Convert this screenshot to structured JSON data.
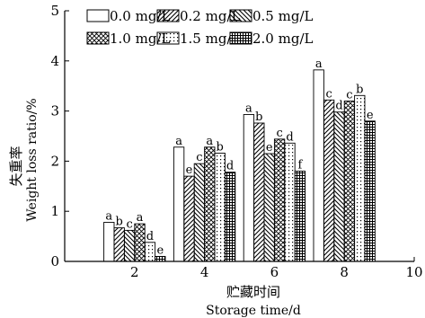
{
  "chart_data": {
    "type": "bar",
    "xlabel_cn": "贮藏时间",
    "xlabel": "Storage time/d",
    "ylabel_cn": "失重率",
    "ylabel": "Weight loss ratio/%",
    "xlim": [
      0,
      10
    ],
    "ylim": [
      0,
      5
    ],
    "x_ticks": [
      2,
      4,
      6,
      8,
      10
    ],
    "y_ticks": [
      0,
      1,
      2,
      3,
      4,
      5
    ],
    "categories": [
      2,
      4,
      6,
      8
    ],
    "legend_position": "top",
    "series": [
      {
        "name": "0.0 mg/L",
        "pattern": "empty",
        "values": [
          0.78,
          2.28,
          2.93,
          3.82
        ],
        "letters": [
          "a",
          "a",
          "a",
          "a"
        ]
      },
      {
        "name": "0.2 mg/L",
        "pattern": "forward-diagonal",
        "values": [
          0.67,
          1.7,
          2.76,
          3.22
        ],
        "letters": [
          "b",
          "e",
          "b",
          "c"
        ]
      },
      {
        "name": "0.5 mg/L",
        "pattern": "back-diagonal",
        "values": [
          0.62,
          1.95,
          2.15,
          2.98
        ],
        "letters": [
          "c",
          "c",
          "e",
          "d"
        ]
      },
      {
        "name": "1.0 mg/L",
        "pattern": "crosshatch",
        "values": [
          0.75,
          2.28,
          2.44,
          3.2
        ],
        "letters": [
          "a",
          "a",
          "c",
          "c"
        ]
      },
      {
        "name": "1.5 mg/L",
        "pattern": "dotted",
        "values": [
          0.38,
          2.16,
          2.36,
          3.31
        ],
        "letters": [
          "d",
          "b",
          "d",
          "b"
        ]
      },
      {
        "name": "2.0 mg/L",
        "pattern": "dense-grid",
        "values": [
          0.1,
          1.78,
          1.8,
          2.8
        ],
        "letters": [
          "e",
          "d",
          "f",
          "e"
        ]
      }
    ]
  }
}
